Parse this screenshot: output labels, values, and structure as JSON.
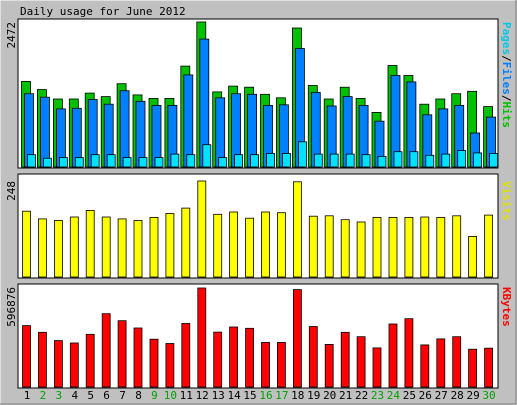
{
  "title": "Daily usage for June 2012",
  "colors": {
    "background": "#c0c0c0",
    "panel": "#ffffff",
    "hits": "#00c000",
    "files": "#0080ff",
    "pages": "#00e0ff",
    "visits": "#ffff00",
    "kbytes": "#ff0000",
    "weekday_label": "#000000",
    "weekend_label": "#00a000"
  },
  "legend": {
    "pages": "Pages",
    "files": "Files",
    "hits": "Hits",
    "sep": "/",
    "visits": "Visits",
    "kbytes": "KBytes"
  },
  "chart_data": [
    {
      "type": "bar",
      "panel": "hits-files-pages",
      "ymax_label": "2472",
      "ylim": [
        0,
        2472
      ],
      "categories": [
        "1",
        "2",
        "3",
        "4",
        "5",
        "6",
        "7",
        "8",
        "9",
        "10",
        "11",
        "12",
        "13",
        "14",
        "15",
        "16",
        "17",
        "18",
        "19",
        "20",
        "21",
        "22",
        "23",
        "24",
        "25",
        "26",
        "27",
        "28",
        "29",
        "30"
      ],
      "weekend_days": [
        "2",
        "3",
        "9",
        "10",
        "16",
        "17",
        "23",
        "24",
        "30"
      ],
      "series": [
        {
          "name": "Hits",
          "values": [
            1460,
            1320,
            1160,
            1160,
            1260,
            1200,
            1420,
            1230,
            1170,
            1170,
            1720,
            2472,
            1280,
            1380,
            1360,
            1240,
            1180,
            2370,
            1390,
            1160,
            1360,
            1170,
            930,
            1730,
            1560,
            1070,
            1160,
            1250,
            1290,
            1030
          ]
        },
        {
          "name": "Files",
          "values": [
            1250,
            1190,
            990,
            1000,
            1150,
            1070,
            1300,
            1120,
            1050,
            1050,
            1570,
            2180,
            1180,
            1250,
            1240,
            1050,
            1060,
            2020,
            1270,
            1040,
            1200,
            1050,
            780,
            1560,
            1450,
            890,
            990,
            1050,
            580,
            850
          ]
        },
        {
          "name": "Pages",
          "values": [
            210,
            150,
            160,
            160,
            210,
            210,
            160,
            160,
            160,
            220,
            210,
            380,
            160,
            210,
            210,
            230,
            230,
            430,
            220,
            220,
            220,
            210,
            180,
            260,
            260,
            200,
            220,
            280,
            240,
            230
          ]
        }
      ]
    },
    {
      "type": "bar",
      "panel": "visits",
      "ymax_label": "248",
      "ylim": [
        0,
        248
      ],
      "categories": [
        "1",
        "2",
        "3",
        "4",
        "5",
        "6",
        "7",
        "8",
        "9",
        "10",
        "11",
        "12",
        "13",
        "14",
        "15",
        "16",
        "17",
        "18",
        "19",
        "20",
        "21",
        "22",
        "23",
        "24",
        "25",
        "26",
        "27",
        "28",
        "29",
        "30"
      ],
      "series": [
        {
          "name": "Visits",
          "values": [
            170,
            150,
            146,
            155,
            172,
            155,
            150,
            146,
            154,
            164,
            178,
            248,
            162,
            168,
            152,
            168,
            166,
            246,
            157,
            158,
            148,
            142,
            154,
            154,
            154,
            155,
            154,
            158,
            105,
            160
          ]
        }
      ]
    },
    {
      "type": "bar",
      "panel": "kbytes",
      "ymax_label": "596876",
      "ylim": [
        0,
        596876
      ],
      "categories": [
        "1",
        "2",
        "3",
        "4",
        "5",
        "6",
        "7",
        "8",
        "9",
        "10",
        "11",
        "12",
        "13",
        "14",
        "15",
        "16",
        "17",
        "18",
        "19",
        "20",
        "21",
        "22",
        "23",
        "24",
        "25",
        "26",
        "27",
        "28",
        "29",
        "30"
      ],
      "series": [
        {
          "name": "KBytes",
          "values": [
            370000,
            330000,
            280000,
            265000,
            318000,
            442000,
            400000,
            356000,
            288000,
            262000,
            383000,
            596876,
            331000,
            362000,
            354000,
            269000,
            269000,
            587000,
            365000,
            257000,
            330000,
            303000,
            236000,
            380000,
            412000,
            254000,
            290000,
            303000,
            228000,
            234000
          ]
        }
      ]
    }
  ]
}
